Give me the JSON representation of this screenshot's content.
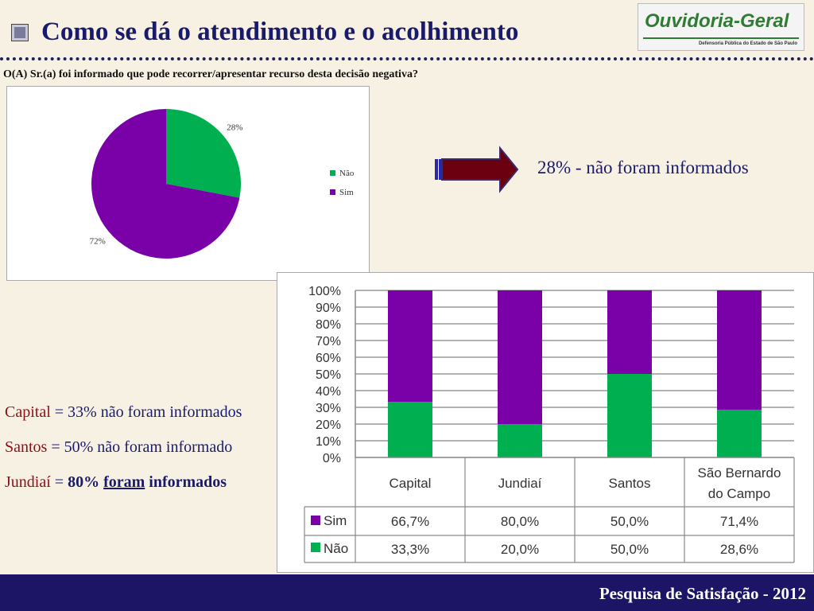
{
  "header": {
    "title": "Como se dá o atendimento e o acolhimento",
    "title_icon": "square-bullet-icon",
    "logo_main": "Ouvidoria-Geral",
    "logo_sub": "Defensoria Pública do Estado de São Paulo"
  },
  "question": "O(A) Sr.(a) foi informado que pode recorrer/apresentar recurso desta decisão negativa?",
  "highlight": "28% - não foram informados",
  "stats": {
    "capital_city": "Capital",
    "capital_rest": " = 33% não foram informados",
    "santos_city": "Santos",
    "santos_rest": " = 50% não foram informado",
    "jundiai_city": "Jundiaí",
    "jundiai_eq": " = ",
    "jundiai_bold1": "80% ",
    "jundiai_underline": "foram",
    "jundiai_bold2": " informados"
  },
  "footer": {
    "text": "Pesquisa de Satisfação - 2012"
  },
  "colors": {
    "sim": "#7a00a8",
    "nao": "#00b050",
    "title": "#1a1a6b",
    "footer": "#1c1464",
    "arrow": "#6b0010"
  },
  "chart_data": [
    {
      "type": "pie",
      "labels": [
        "Não",
        "Sim"
      ],
      "values": [
        28,
        72
      ],
      "data_labels": [
        "28%",
        "72%"
      ],
      "legend": [
        "Não",
        "Sim"
      ],
      "legend_position": "right"
    },
    {
      "type": "bar",
      "stacked": true,
      "categories": [
        "Capital",
        "Jundiaí",
        "Santos",
        "São Bernardo do Campo"
      ],
      "series": [
        {
          "name": "Sim",
          "values": [
            66.7,
            80.0,
            50.0,
            71.4
          ],
          "labels": [
            "66,7%",
            "80,0%",
            "50,0%",
            "71,4%"
          ]
        },
        {
          "name": "Não",
          "values": [
            33.3,
            20.0,
            50.0,
            28.6
          ],
          "labels": [
            "33,3%",
            "20,0%",
            "50,0%",
            "28,6%"
          ]
        }
      ],
      "y_ticks": [
        "0%",
        "10%",
        "20%",
        "30%",
        "40%",
        "50%",
        "60%",
        "70%",
        "80%",
        "90%",
        "100%"
      ],
      "ylim": [
        0,
        100
      ],
      "grid": true,
      "data_table": true
    }
  ]
}
